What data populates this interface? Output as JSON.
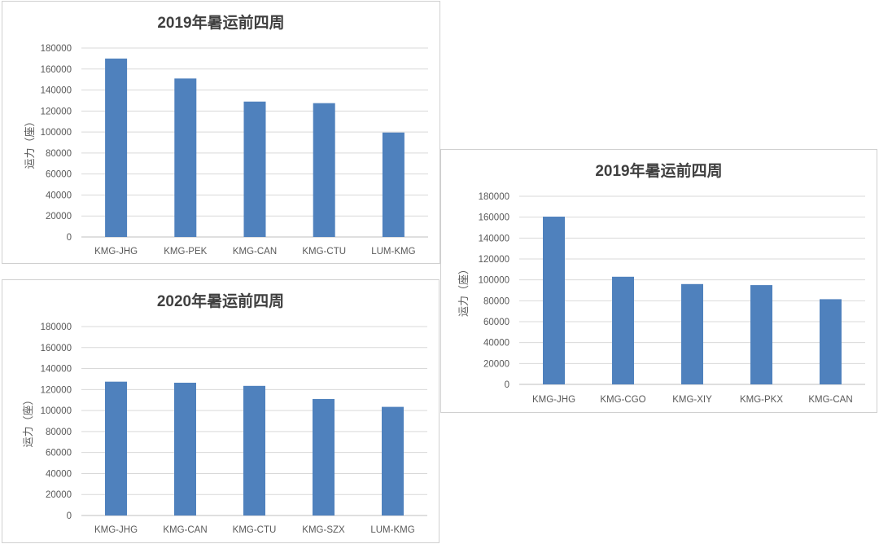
{
  "colors": {
    "bar": "#4f81bd",
    "grid": "#d9d9d9",
    "text": "#595959",
    "title": "#404040"
  },
  "chart_data": [
    {
      "type": "bar",
      "title": "2019年暑运前四周",
      "xlabel": "",
      "ylabel": "运力（座）",
      "ylim": [
        0,
        180000
      ],
      "yticks": [
        "180000",
        "160000",
        "140000",
        "120000",
        "100000",
        "80000",
        "60000",
        "40000",
        "20000",
        "0"
      ],
      "categories": [
        "KMG-JHG",
        "KMG-PEK",
        "KMG-CAN",
        "KMG-CTU",
        "LUM-KMG"
      ],
      "values": [
        170000,
        151000,
        129000,
        127500,
        99500
      ],
      "grid": true,
      "legend": "none"
    },
    {
      "type": "bar",
      "title": "2020年暑运前四周",
      "xlabel": "",
      "ylabel": "运力（座）",
      "ylim": [
        0,
        180000
      ],
      "yticks": [
        "180000",
        "160000",
        "140000",
        "120000",
        "100000",
        "80000",
        "60000",
        "40000",
        "20000",
        "0"
      ],
      "categories": [
        "KMG-JHG",
        "KMG-CAN",
        "KMG-CTU",
        "KMG-SZX",
        "LUM-KMG"
      ],
      "values": [
        127500,
        126500,
        123500,
        111000,
        103500
      ],
      "grid": true,
      "legend": "none"
    },
    {
      "type": "bar",
      "title": "2019年暑运前四周",
      "xlabel": "",
      "ylabel": "运力（座）",
      "ylim": [
        0,
        180000
      ],
      "yticks": [
        "180000",
        "160000",
        "140000",
        "120000",
        "100000",
        "80000",
        "60000",
        "40000",
        "20000",
        "0"
      ],
      "categories": [
        "KMG-JHG",
        "KMG-CGO",
        "KMG-XIY",
        "KMG-PKX",
        "KMG-CAN"
      ],
      "values": [
        160500,
        103000,
        96000,
        95000,
        81500
      ],
      "grid": true,
      "legend": "none"
    }
  ]
}
